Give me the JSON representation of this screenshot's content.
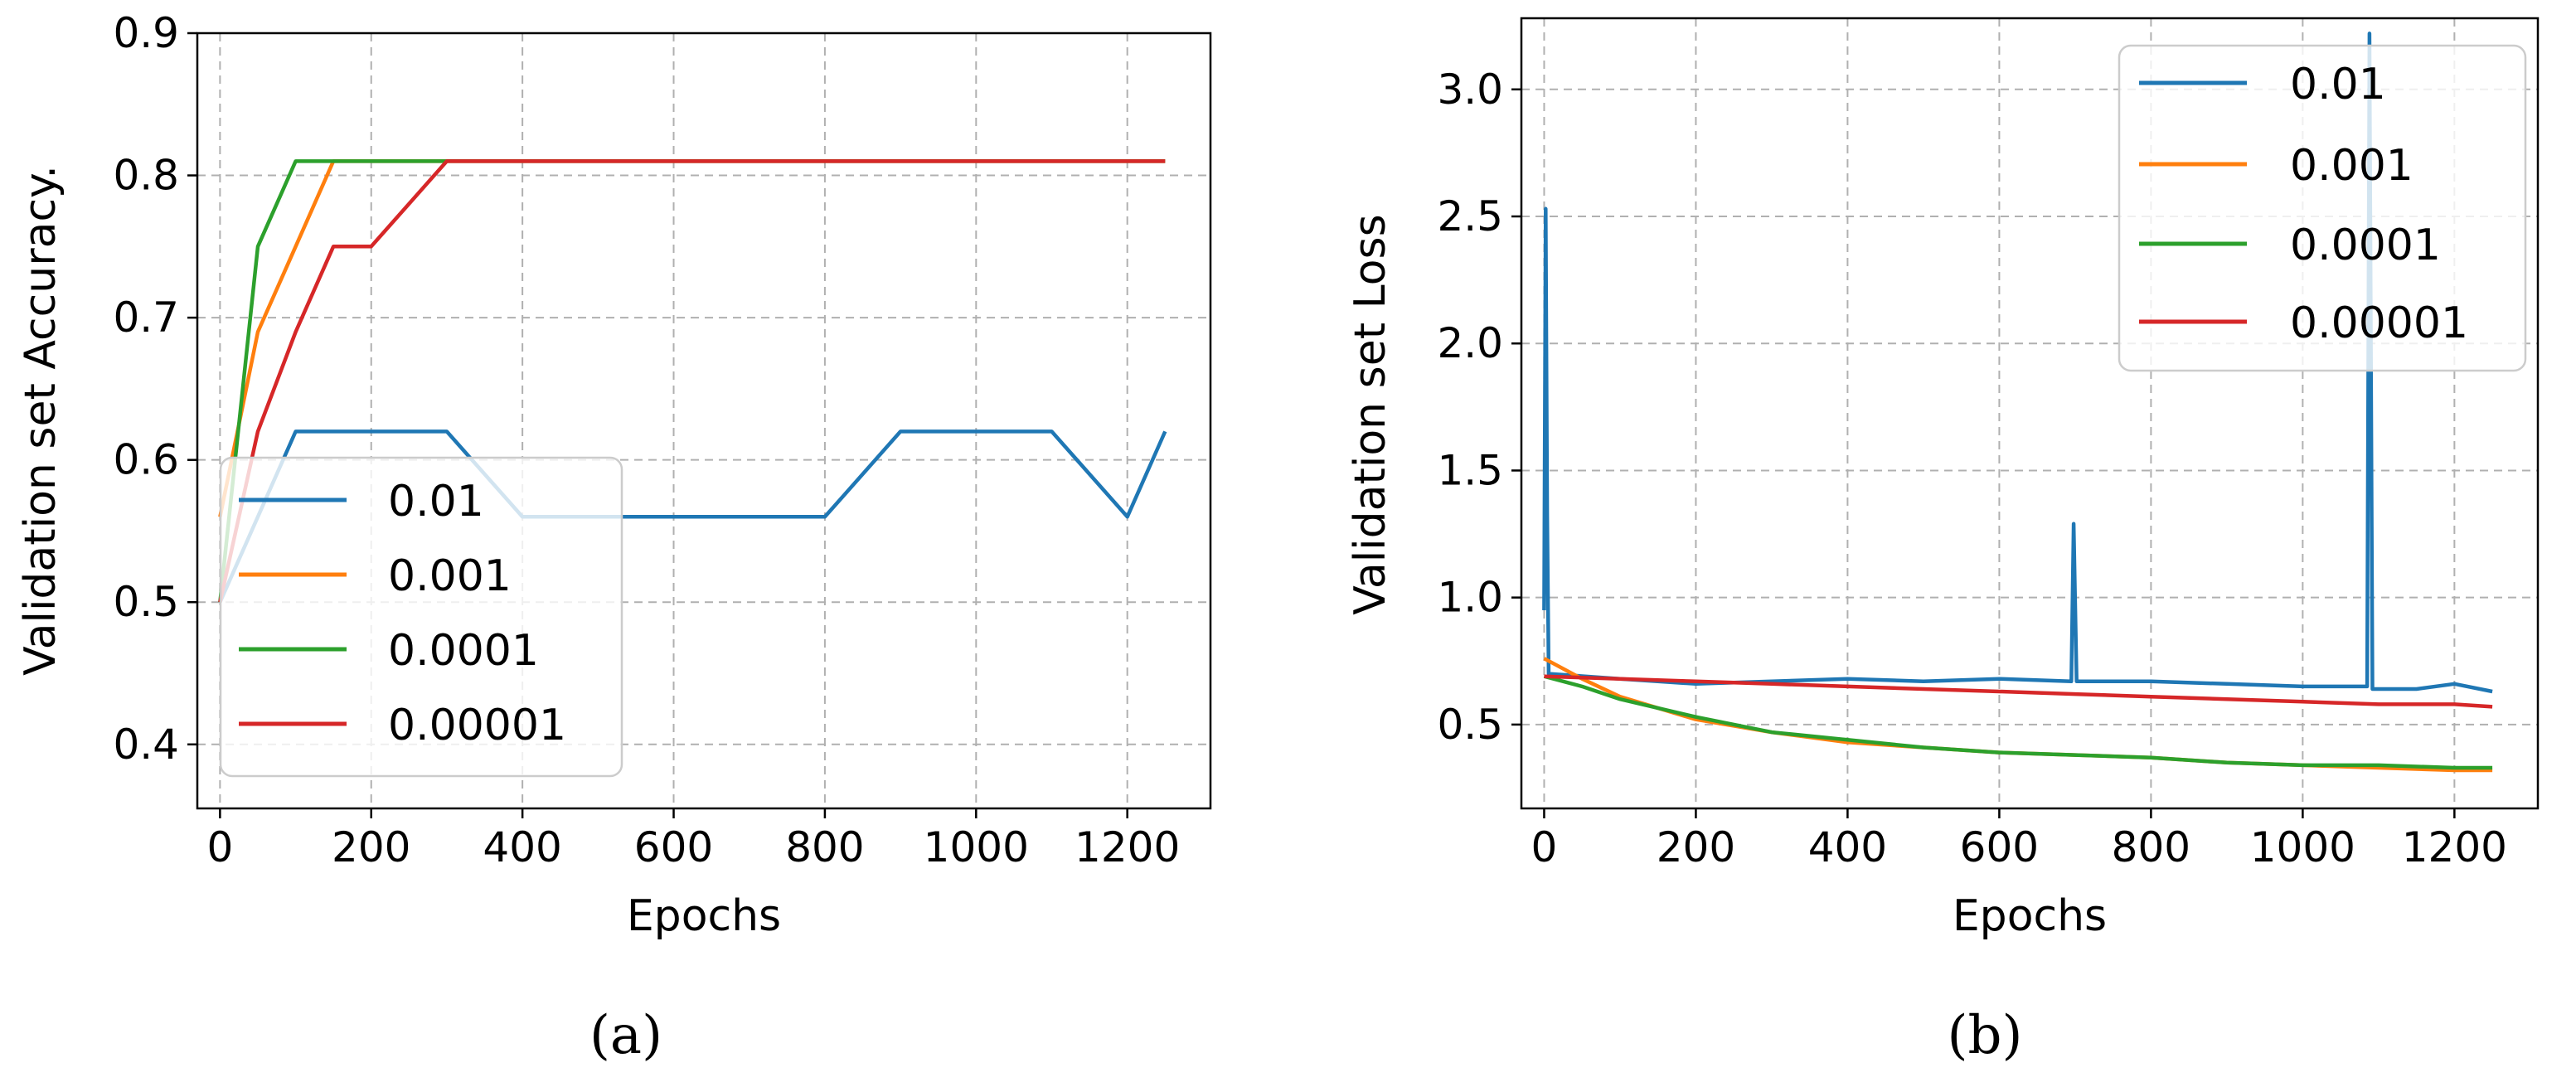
{
  "colors": {
    "0.01": "#1f77b4",
    "0.001": "#ff7f0e",
    "0.0001": "#2ca02c",
    "0.00001": "#d62728"
  },
  "chart_data": [
    {
      "type": "line",
      "panel_label": "(a)",
      "xlabel": "Epochs",
      "ylabel": "Validation set Accuracy.",
      "xlim": [
        -30,
        1310
      ],
      "ylim": [
        0.355,
        0.9
      ],
      "xticks": [
        0,
        200,
        400,
        600,
        800,
        1000,
        1200
      ],
      "yticks": [
        0.4,
        0.5,
        0.6,
        0.7,
        0.8,
        0.9
      ],
      "ytick_labels": [
        "0.4",
        "0.5",
        "0.6",
        "0.7",
        "0.8",
        "0.9"
      ],
      "grid": true,
      "legend_position": "lower-left",
      "series": [
        {
          "name": "0.01",
          "color": "#1f77b4",
          "x": [
            0,
            50,
            100,
            150,
            200,
            300,
            400,
            500,
            600,
            700,
            800,
            900,
            1000,
            1100,
            1200,
            1250
          ],
          "values": [
            0.5,
            0.56,
            0.62,
            0.62,
            0.62,
            0.62,
            0.56,
            0.56,
            0.56,
            0.56,
            0.56,
            0.62,
            0.62,
            0.62,
            0.56,
            0.62
          ]
        },
        {
          "name": "0.001",
          "color": "#ff7f0e",
          "x": [
            0,
            50,
            100,
            150,
            200,
            300,
            400,
            500,
            600,
            700,
            800,
            900,
            1000,
            1100,
            1200,
            1250
          ],
          "values": [
            0.56,
            0.69,
            0.75,
            0.81,
            0.81,
            0.81,
            0.81,
            0.81,
            0.81,
            0.81,
            0.81,
            0.81,
            0.81,
            0.81,
            0.81,
            0.81
          ]
        },
        {
          "name": "0.0001",
          "color": "#2ca02c",
          "x": [
            0,
            50,
            100,
            150,
            200,
            300,
            400,
            500,
            600,
            700,
            800,
            900,
            1000,
            1100,
            1200,
            1250
          ],
          "values": [
            0.5,
            0.75,
            0.81,
            0.81,
            0.81,
            0.81,
            0.81,
            0.81,
            0.81,
            0.81,
            0.81,
            0.81,
            0.81,
            0.81,
            0.81,
            0.81
          ]
        },
        {
          "name": "0.00001",
          "color": "#d62728",
          "x": [
            0,
            50,
            100,
            150,
            200,
            300,
            400,
            500,
            600,
            700,
            800,
            900,
            1000,
            1100,
            1200,
            1250
          ],
          "values": [
            0.5,
            0.62,
            0.69,
            0.75,
            0.75,
            0.81,
            0.81,
            0.81,
            0.81,
            0.81,
            0.81,
            0.81,
            0.81,
            0.81,
            0.81,
            0.81
          ]
        }
      ]
    },
    {
      "type": "line",
      "panel_label": "(b)",
      "xlabel": "Epochs",
      "ylabel": "Validation set Loss",
      "xlim": [
        -30,
        1310
      ],
      "ylim": [
        0.17,
        3.28
      ],
      "xticks": [
        0,
        200,
        400,
        600,
        800,
        1000,
        1200
      ],
      "yticks": [
        0.5,
        1.0,
        1.5,
        2.0,
        2.5,
        3.0
      ],
      "ytick_labels": [
        "0.5",
        "1.0",
        "1.5",
        "2.0",
        "2.5",
        "3.0"
      ],
      "grid": true,
      "legend_position": "top-right",
      "series": [
        {
          "name": "0.01",
          "color": "#1f77b4",
          "x": [
            0,
            2,
            4,
            6,
            100,
            200,
            300,
            400,
            500,
            600,
            695,
            698,
            702,
            800,
            900,
            1000,
            1085,
            1088,
            1092,
            1150,
            1200,
            1250
          ],
          "values": [
            0.95,
            2.53,
            1.33,
            0.7,
            0.68,
            0.66,
            0.67,
            0.68,
            0.67,
            0.68,
            0.67,
            1.29,
            0.67,
            0.67,
            0.66,
            0.65,
            0.65,
            3.22,
            0.64,
            0.64,
            0.66,
            0.63
          ]
        },
        {
          "name": "0.001",
          "color": "#ff7f0e",
          "x": [
            0,
            50,
            100,
            200,
            300,
            400,
            500,
            600,
            700,
            800,
            900,
            1000,
            1100,
            1200,
            1250
          ],
          "values": [
            0.76,
            0.68,
            0.61,
            0.52,
            0.47,
            0.43,
            0.41,
            0.39,
            0.38,
            0.37,
            0.35,
            0.34,
            0.33,
            0.32,
            0.32
          ]
        },
        {
          "name": "0.0001",
          "color": "#2ca02c",
          "x": [
            0,
            50,
            100,
            200,
            300,
            400,
            500,
            600,
            700,
            800,
            900,
            1000,
            1100,
            1200,
            1250
          ],
          "values": [
            0.69,
            0.65,
            0.6,
            0.53,
            0.47,
            0.44,
            0.41,
            0.39,
            0.38,
            0.37,
            0.35,
            0.34,
            0.34,
            0.33,
            0.33
          ]
        },
        {
          "name": "0.00001",
          "color": "#d62728",
          "x": [
            0,
            100,
            200,
            300,
            400,
            500,
            600,
            700,
            800,
            900,
            1000,
            1100,
            1200,
            1250
          ],
          "values": [
            0.69,
            0.68,
            0.67,
            0.66,
            0.65,
            0.64,
            0.63,
            0.62,
            0.61,
            0.6,
            0.59,
            0.58,
            0.58,
            0.57
          ]
        }
      ]
    }
  ]
}
